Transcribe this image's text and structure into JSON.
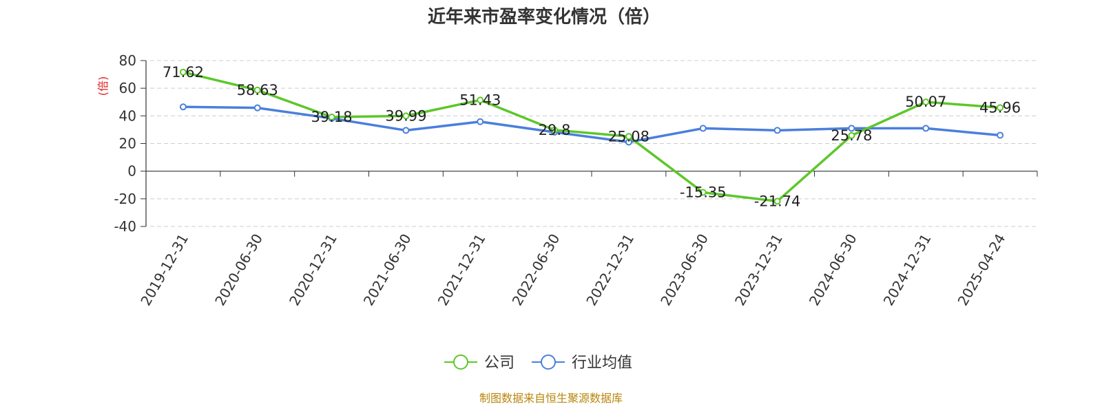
{
  "chart_data": {
    "type": "line",
    "title": "近年来市盈率变化情况（倍）",
    "ylabel": "(倍)",
    "ylim": [
      -40,
      80
    ],
    "yticks": [
      -40,
      -20,
      0,
      20,
      40,
      60,
      80
    ],
    "grid": true,
    "categories": [
      "2019-12-31",
      "2020-06-30",
      "2020-12-31",
      "2021-06-30",
      "2021-12-31",
      "2022-06-30",
      "2022-12-31",
      "2023-06-30",
      "2023-12-31",
      "2024-06-30",
      "2024-12-31",
      "2025-04-24"
    ],
    "series": [
      {
        "name": "公司",
        "color": "#5cc72a",
        "values": [
          71.62,
          58.63,
          39.18,
          39.99,
          51.43,
          29.8,
          25.08,
          -15.35,
          -21.74,
          25.78,
          50.07,
          45.96
        ],
        "labels": [
          "71.62",
          "58.63",
          "39.18",
          "39.99",
          "51.43",
          "29.8",
          "25.08",
          "-15.35",
          "-21.74",
          "25.78",
          "50.07",
          "45.96"
        ]
      },
      {
        "name": "行业均值",
        "color": "#4a7fdc",
        "values": [
          46.5,
          45.8,
          38.2,
          29.5,
          35.8,
          28.2,
          21.0,
          31.0,
          29.5,
          31.0,
          31.0,
          26.0
        ]
      }
    ],
    "legend_position": "bottom-center",
    "source": "制图数据来自恒生聚源数据库"
  }
}
